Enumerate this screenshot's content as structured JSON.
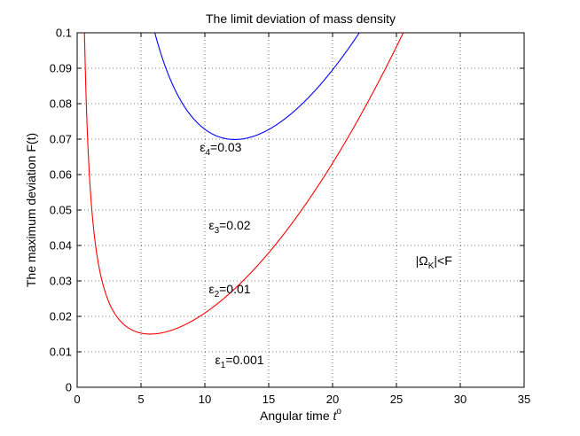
{
  "chart_data": {
    "type": "line",
    "title": "The limit deviation of mass density",
    "xlabel": "Angular time",
    "xlabel_var": "t",
    "xlabel_sup": "o",
    "ylabel": "The maximum deviation F(t)",
    "xlim": [
      0,
      35
    ],
    "ylim": [
      0,
      0.1
    ],
    "xticks": [
      0,
      5,
      10,
      15,
      20,
      25,
      30,
      35
    ],
    "yticks": [
      0,
      0.01,
      0.02,
      0.03,
      0.04,
      0.05,
      0.06,
      0.07,
      0.08,
      0.09,
      0.1
    ],
    "ytick_labels": [
      "0",
      "0.01",
      "0.02",
      "0.03",
      "0.04",
      "0.05",
      "0.06",
      "0.07",
      "0.08",
      "0.09",
      "0.1"
    ],
    "grid": true,
    "series": [
      {
        "name": "ε1=0.001",
        "label_base": "ε",
        "label_sub": "1",
        "label_value": "=0.001",
        "epsilon": 0.001,
        "color": "#ff0000",
        "label_at": [
          10.8,
          0.0065
        ]
      },
      {
        "name": "ε2=0.01",
        "label_base": "ε",
        "label_sub": "2",
        "label_value": "=0.01",
        "epsilon": 0.01,
        "color": "#0000ff",
        "label_at": [
          10.3,
          0.0265
        ]
      },
      {
        "name": "ε3=0.02",
        "label_base": "ε",
        "label_sub": "3",
        "label_value": "=0.02",
        "epsilon": 0.02,
        "color": "#bf00ff",
        "label_at": [
          10.3,
          0.0445
        ]
      },
      {
        "name": "ε4=0.03",
        "label_base": "ε",
        "label_sub": "4",
        "label_value": "=0.03",
        "epsilon": 0.03,
        "color": "#40e0d0",
        "label_at": [
          9.6,
          0.0665
        ]
      }
    ],
    "annotations": [
      {
        "text_pre": "|Ω",
        "text_sub": "K",
        "text_post": "|<F",
        "at": [
          26.5,
          0.0345
        ]
      }
    ]
  }
}
